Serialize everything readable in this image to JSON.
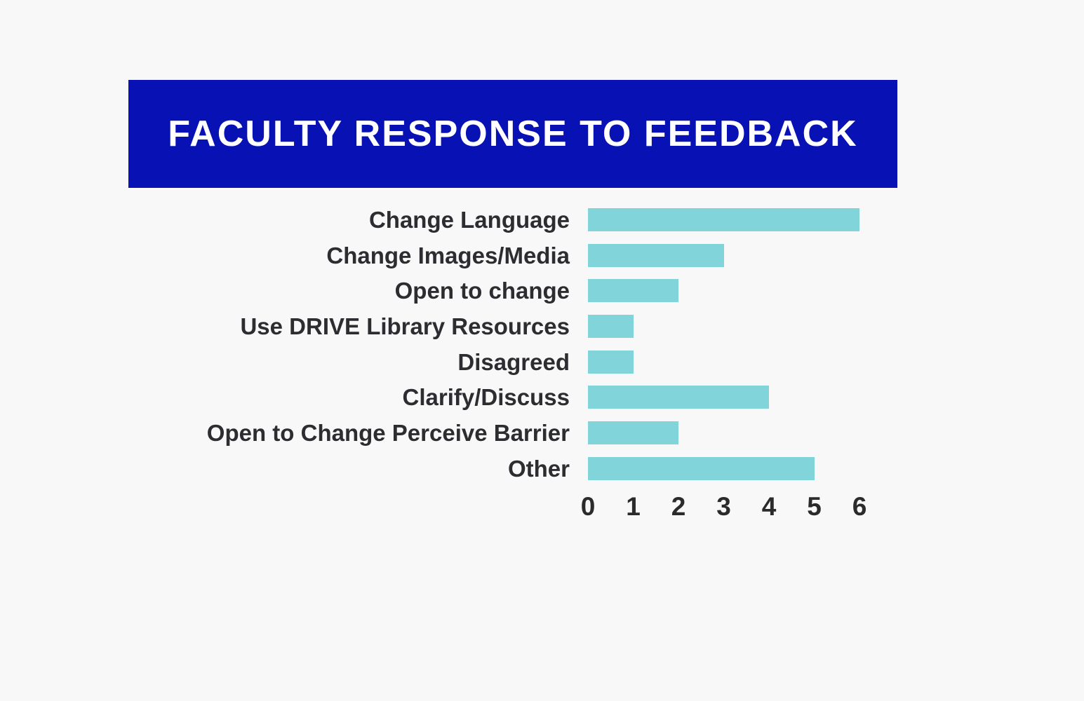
{
  "chart_data": {
    "type": "bar",
    "orientation": "horizontal",
    "title": "FACULTY RESPONSE TO FEEDBACK",
    "categories": [
      "Change Language",
      "Change Images/Media",
      "Open to change",
      "Use DRIVE Library Resources",
      "Disagreed",
      "Clarify/Discuss",
      "Open to Change Perceive Barrier",
      "Other"
    ],
    "values": [
      6,
      3,
      2,
      1,
      1,
      4,
      2,
      5
    ],
    "xlabel": "",
    "ylabel": "",
    "xlim": [
      0,
      6
    ],
    "x_ticks": [
      0,
      1,
      2,
      3,
      4,
      5,
      6
    ],
    "grid": false,
    "legend": "none",
    "colors": {
      "bar_fill": "#80d4da",
      "banner_bg": "#0811b3",
      "title_text": "#ffffff",
      "label_text": "#2d2d31",
      "tick_text": "#2b2b2b",
      "page_bg": "#f8f8f9"
    }
  }
}
